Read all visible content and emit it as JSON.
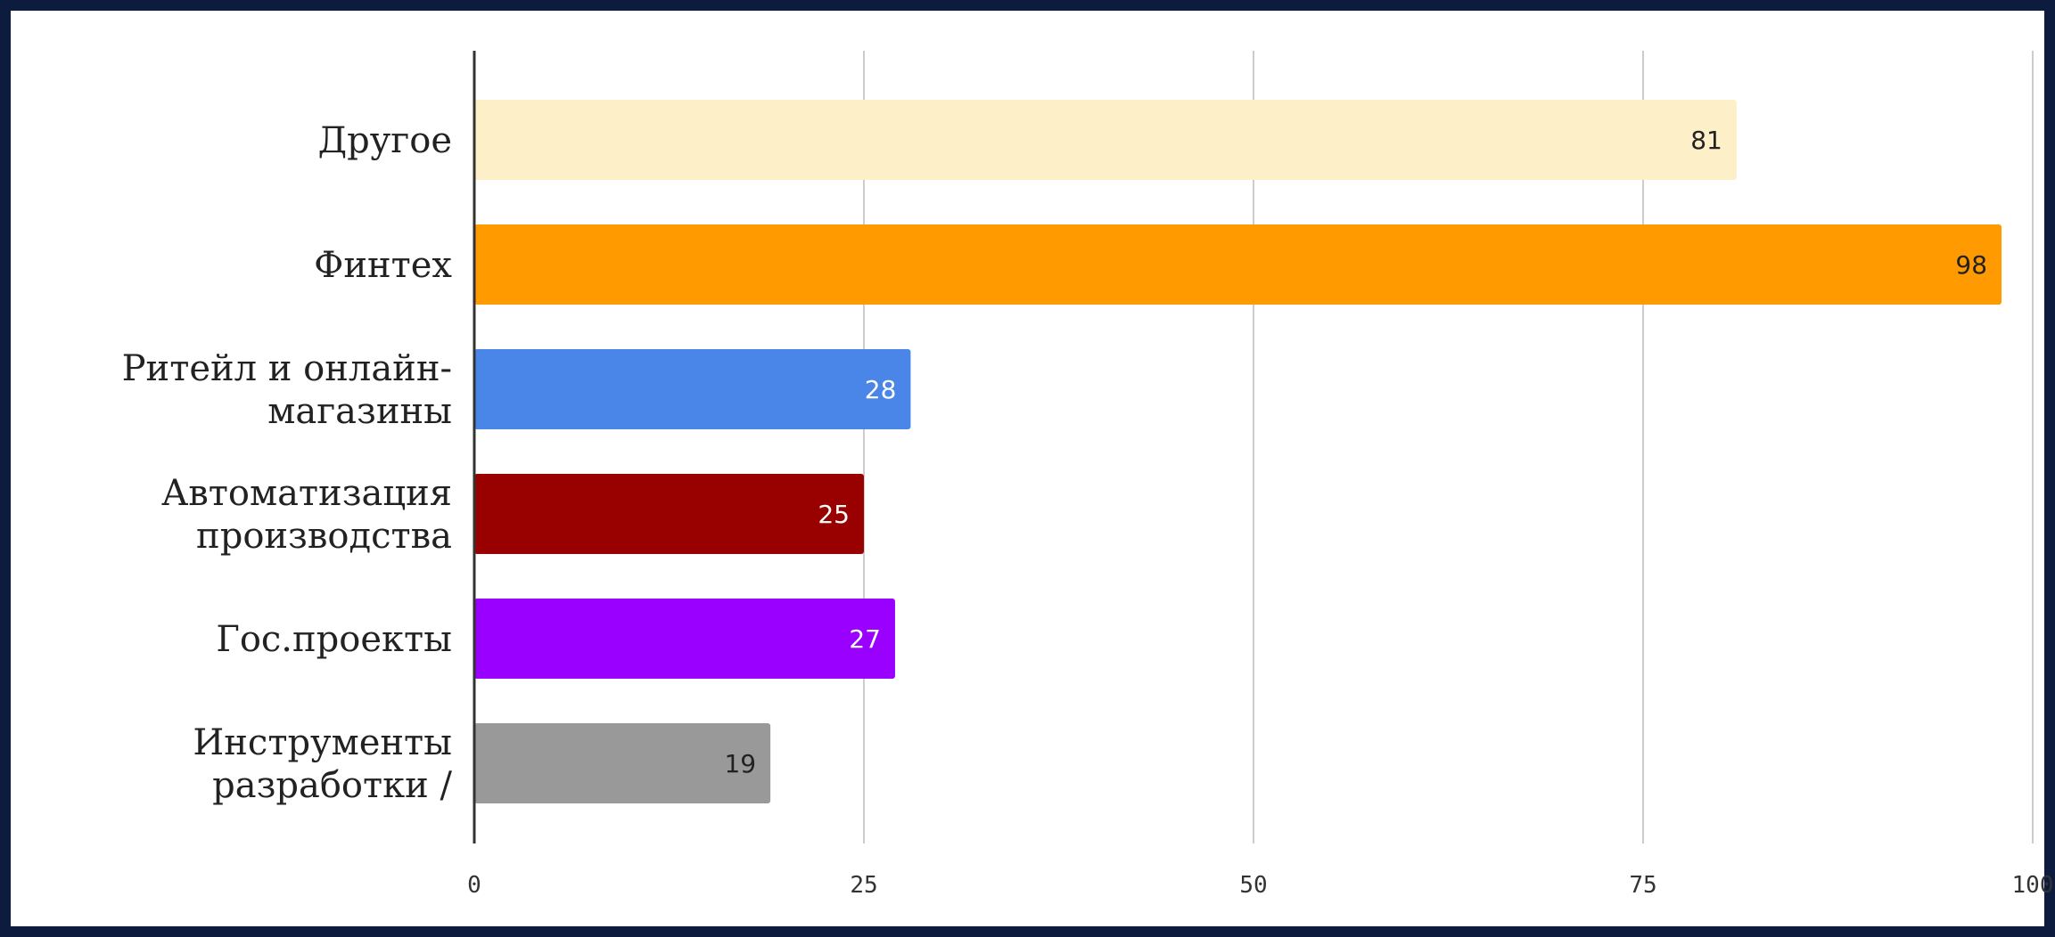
{
  "chart_data": {
    "type": "bar",
    "orientation": "horizontal",
    "title": "",
    "xlabel": "",
    "ylabel": "",
    "xlim": [
      0,
      100
    ],
    "ticks": [
      "0",
      "25",
      "50",
      "75",
      "100"
    ],
    "tick_values": [
      0,
      25,
      50,
      75,
      100
    ],
    "grid": true,
    "legend": "none",
    "categories": [
      [
        "Другое"
      ],
      [
        "Финтех"
      ],
      [
        "Ритейл и онлайн-",
        "магазины"
      ],
      [
        "Автоматизация",
        "производства"
      ],
      [
        "Гос.проекты"
      ],
      [
        "Инструменты",
        "разработки /"
      ]
    ],
    "values": [
      81,
      98,
      28,
      25,
      27,
      19
    ],
    "data_labels": [
      "81",
      "98",
      "28",
      "25",
      "27",
      "19"
    ],
    "colors": [
      "#fdefc8",
      "#ff9b00",
      "#4a86e8",
      "#990000",
      "#9a00ff",
      "#999999"
    ],
    "label_colors": [
      "#222222",
      "#222222",
      "#ffffff",
      "#ffffff",
      "#ffffff",
      "#222222"
    ]
  },
  "colors": {
    "frame": "#0d1b3e",
    "background": "#ffffff",
    "grid": "#cccccc",
    "axis": "#333333"
  }
}
